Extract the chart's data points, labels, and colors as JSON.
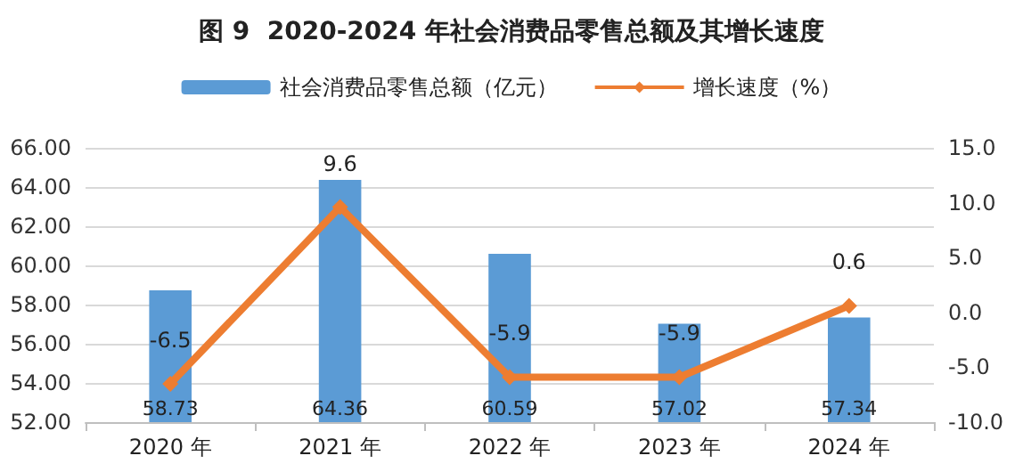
{
  "chart_data": {
    "type": "bar",
    "title": "图 9  2020-2024 年社会消费品零售总额及其增长速度",
    "categories": [
      "2020 年",
      "2021 年",
      "2022 年",
      "2023 年",
      "2024 年"
    ],
    "series": [
      {
        "name": "社会消费品零售总额（亿元）",
        "color": "#5b9bd5",
        "values": [
          58.73,
          64.36,
          60.59,
          57.02,
          57.34
        ]
      },
      {
        "name": "增长速度（%）",
        "type": "line",
        "axis": "y2",
        "color": "#ed7d31",
        "marker": "diamond",
        "values": [
          -6.5,
          9.6,
          -5.9,
          -5.9,
          0.6
        ]
      }
    ],
    "ylim": [
      52,
      66
    ],
    "yticks": [
      {
        "value": 52,
        "label": "52.00"
      },
      {
        "value": 54,
        "label": "54.00"
      },
      {
        "value": 56,
        "label": "56.00"
      },
      {
        "value": 58,
        "label": "58.00"
      },
      {
        "value": 60,
        "label": "60.00"
      },
      {
        "value": 62,
        "label": "62.00"
      },
      {
        "value": 64,
        "label": "64.00"
      },
      {
        "value": 66,
        "label": "66.00"
      }
    ],
    "y2lim": [
      -10,
      15
    ],
    "y2ticks": [
      {
        "value": -10,
        "label": "-10.0"
      },
      {
        "value": -5,
        "label": "-5.0"
      },
      {
        "value": 0,
        "label": "0.0"
      },
      {
        "value": 5,
        "label": "5.0"
      },
      {
        "value": 10,
        "label": "10.0"
      },
      {
        "value": 15,
        "label": "15.0"
      }
    ],
    "data_labels": true,
    "grid": "y",
    "legend": "top"
  }
}
